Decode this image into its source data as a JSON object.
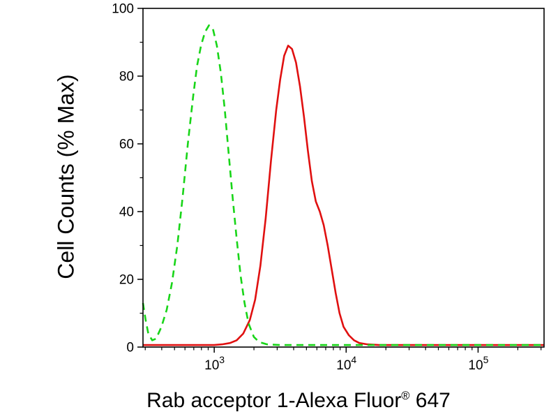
{
  "chart_data": {
    "type": "line",
    "title": "",
    "ylabel": "Cell Counts (% Max)",
    "xlabel_parts": {
      "prefix": "Rab acceptor 1-Alexa Fluor",
      "registered": "®",
      "suffix": " 647"
    },
    "x_scale": "log",
    "xlog_range": [
      2.46,
      5.5
    ],
    "ylim": [
      0,
      100
    ],
    "grid": false,
    "legend": "none",
    "y_ticks": [
      0,
      20,
      40,
      60,
      80,
      100
    ],
    "y_minor_ticks": [
      10,
      30,
      50,
      70,
      90
    ],
    "x_major_ticks": [
      {
        "log": 3,
        "base": "10",
        "exp": "3"
      },
      {
        "log": 4,
        "base": "10",
        "exp": "4"
      },
      {
        "log": 5,
        "base": "10",
        "exp": "5"
      }
    ],
    "axis_color": "#000000",
    "series": [
      {
        "name": "red-solid",
        "color": "#e01010",
        "dash": null,
        "width": 2.6,
        "peak_x_log10": 3.56,
        "peak_y_percent": 89,
        "points": [
          [
            2.46,
            0.6
          ],
          [
            3.0,
            0.6
          ],
          [
            3.06,
            0.8
          ],
          [
            3.12,
            1.2
          ],
          [
            3.17,
            2
          ],
          [
            3.22,
            4
          ],
          [
            3.27,
            8
          ],
          [
            3.31,
            14
          ],
          [
            3.35,
            24
          ],
          [
            3.39,
            38
          ],
          [
            3.43,
            55
          ],
          [
            3.47,
            70
          ],
          [
            3.5,
            79
          ],
          [
            3.53,
            86
          ],
          [
            3.56,
            89
          ],
          [
            3.59,
            88
          ],
          [
            3.62,
            84
          ],
          [
            3.65,
            77
          ],
          [
            3.68,
            68
          ],
          [
            3.71,
            58
          ],
          [
            3.74,
            49
          ],
          [
            3.77,
            43
          ],
          [
            3.8,
            40
          ],
          [
            3.83,
            36
          ],
          [
            3.86,
            30
          ],
          [
            3.89,
            23
          ],
          [
            3.92,
            16
          ],
          [
            3.95,
            10
          ],
          [
            3.98,
            6
          ],
          [
            4.02,
            3.5
          ],
          [
            4.06,
            2
          ],
          [
            4.1,
            1.2
          ],
          [
            4.16,
            0.8
          ],
          [
            4.25,
            0.6
          ],
          [
            5.5,
            0.6
          ]
        ]
      },
      {
        "name": "green-dashed",
        "color": "#18d518",
        "dash": "10 7",
        "width": 2.6,
        "peak_x_log10": 2.96,
        "peak_y_percent": 95,
        "points": [
          [
            2.46,
            13
          ],
          [
            2.48,
            8
          ],
          [
            2.5,
            4
          ],
          [
            2.53,
            2
          ],
          [
            2.56,
            2.5
          ],
          [
            2.6,
            6
          ],
          [
            2.64,
            11
          ],
          [
            2.68,
            19
          ],
          [
            2.72,
            30
          ],
          [
            2.76,
            44
          ],
          [
            2.8,
            60
          ],
          [
            2.84,
            74
          ],
          [
            2.87,
            83
          ],
          [
            2.9,
            89
          ],
          [
            2.93,
            93
          ],
          [
            2.96,
            95
          ],
          [
            2.99,
            94
          ],
          [
            3.02,
            89
          ],
          [
            3.05,
            81
          ],
          [
            3.08,
            70
          ],
          [
            3.11,
            57
          ],
          [
            3.14,
            44
          ],
          [
            3.17,
            32
          ],
          [
            3.2,
            21
          ],
          [
            3.23,
            13
          ],
          [
            3.26,
            7
          ],
          [
            3.3,
            3
          ],
          [
            3.34,
            1.5
          ],
          [
            3.4,
            0.8
          ],
          [
            3.5,
            0.6
          ],
          [
            5.5,
            0.6
          ]
        ]
      }
    ]
  }
}
